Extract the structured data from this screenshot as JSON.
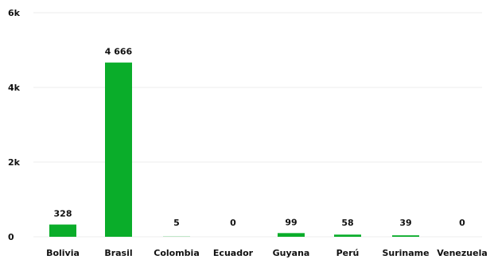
{
  "chart_data": {
    "type": "bar",
    "categories": [
      "Bolivia",
      "Brasil",
      "Colombia",
      "Ecuador",
      "Guyana",
      "Perú",
      "Suriname",
      "Venezuela"
    ],
    "values": [
      328,
      4666,
      5,
      0,
      99,
      58,
      39,
      0
    ],
    "value_labels": [
      "328",
      "4 666",
      "5",
      "0",
      "99",
      "58",
      "39",
      "0"
    ],
    "ylim": [
      0,
      6000
    ],
    "yticks": [
      0,
      2000,
      4000,
      6000
    ],
    "ytick_labels": [
      "0",
      "2k",
      "4k",
      "6k"
    ],
    "grid": true,
    "legend": "none",
    "bar_color": "#0aad2a",
    "grid_color": "#ececec",
    "text_color": "#111111"
  }
}
